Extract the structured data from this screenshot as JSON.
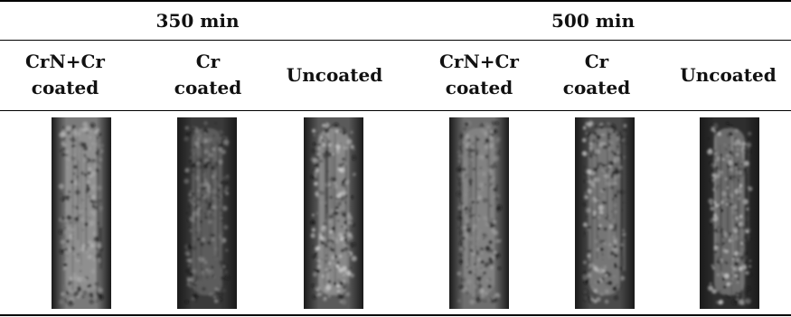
{
  "groups": [
    {
      "label": "350 min"
    },
    {
      "label": "500 min"
    }
  ],
  "columns": [
    {
      "line1": "CrN+Cr",
      "line2": "coated"
    },
    {
      "line1": "Cr",
      "line2": "coated"
    },
    {
      "line1": "Uncoated",
      "line2": ""
    },
    {
      "line1": "CrN+Cr",
      "line2": "coated"
    },
    {
      "line1": "Cr",
      "line2": "coated"
    },
    {
      "line1": "Uncoated",
      "line2": ""
    }
  ],
  "samples": [
    {
      "name": "crn-cr-coated-350",
      "base": "#7a7a7a",
      "wear": "#b8b8b8"
    },
    {
      "name": "cr-coated-350",
      "base": "#3a3a3a",
      "wear": "#9a9a9a"
    },
    {
      "name": "uncoated-350",
      "base": "#5a5a5a",
      "wear": "#e0e0e0"
    },
    {
      "name": "crn-cr-coated-500",
      "base": "#6e6e6e",
      "wear": "#a8a8a8"
    },
    {
      "name": "cr-coated-500",
      "base": "#4a4a4a",
      "wear": "#c8c8c8"
    },
    {
      "name": "uncoated-500",
      "base": "#2e2e2e",
      "wear": "#dcdcdc"
    }
  ]
}
